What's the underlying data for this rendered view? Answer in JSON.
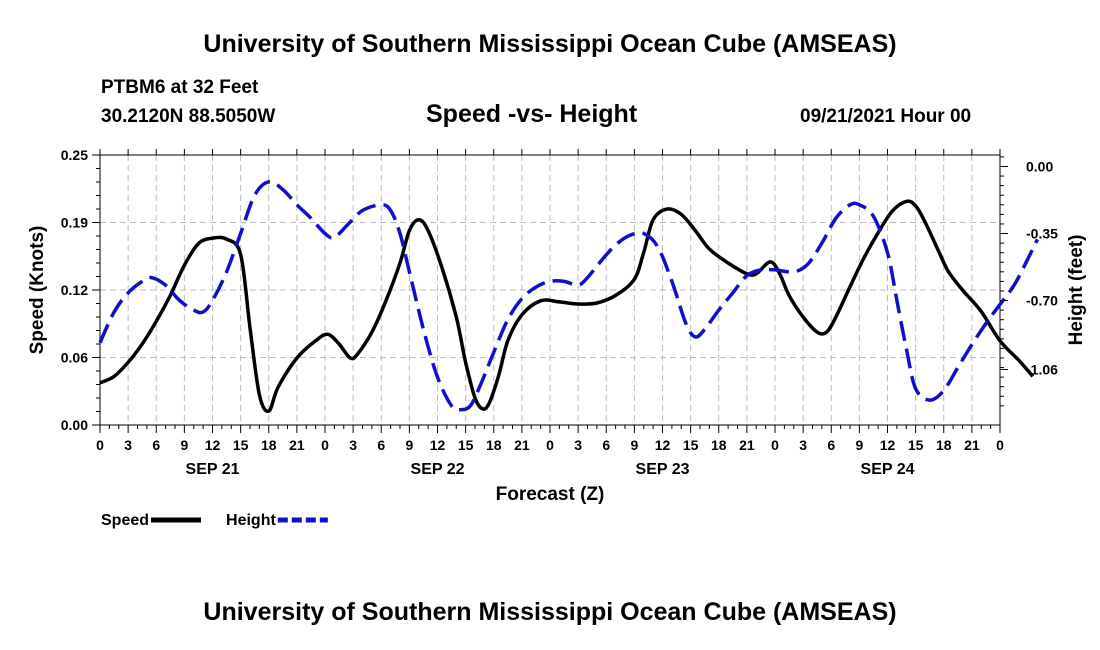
{
  "header": {
    "title": "University of Southern Mississippi Ocean Cube (AMSEAS)",
    "station": "PTBM6 at 32 Feet",
    "coordinates": "30.2120N  88.5050W",
    "chart_title": "Speed -vs- Height",
    "datetime": "09/21/2021 Hour 00"
  },
  "footer": {
    "title": "University of Southern Mississippi Ocean Cube (AMSEAS)"
  },
  "chart_data": {
    "type": "line",
    "title": "Speed -vs- Height",
    "xlabel": "Forecast (Z)",
    "ylabel": "Speed (Knots)",
    "ylabel_right": "Height (feet)",
    "x_range_hours": [
      0,
      96
    ],
    "ylim": [
      0,
      0.25
    ],
    "ylim_right": [
      -1.35,
      0.06
    ],
    "y_ticks": [
      "0.00",
      "0.06",
      "0.12",
      "0.19",
      "0.25"
    ],
    "y_tick_values": [
      0,
      0.0625,
      0.125,
      0.1875,
      0.25
    ],
    "y_right_ticks": [
      "0.00",
      "-0.35",
      "-0.70",
      "-1.06"
    ],
    "y_right_tick_values": [
      0,
      -0.35,
      -0.7,
      -1.06
    ],
    "x_tick_labels": [
      "0",
      "3",
      "6",
      "9",
      "12",
      "15",
      "18",
      "21",
      "0",
      "3",
      "6",
      "9",
      "12",
      "15",
      "18",
      "21",
      "0",
      "3",
      "6",
      "9",
      "12",
      "15",
      "18",
      "21",
      "0",
      "3",
      "6",
      "9",
      "12",
      "15",
      "18",
      "21",
      "0"
    ],
    "date_labels": [
      {
        "label": "SEP 21",
        "hour": 12
      },
      {
        "label": "SEP 22",
        "hour": 36
      },
      {
        "label": "SEP 23",
        "hour": 60
      },
      {
        "label": "SEP 24",
        "hour": 84
      }
    ],
    "legend": [
      "Speed",
      "Height"
    ],
    "series": [
      {
        "name": "Speed",
        "axis": "left",
        "color": "#000000",
        "style": "solid",
        "points": [
          [
            0,
            0.039
          ],
          [
            1.5,
            0.045
          ],
          [
            3,
            0.058
          ],
          [
            4.5,
            0.075
          ],
          [
            6,
            0.096
          ],
          [
            7.5,
            0.12
          ],
          [
            9,
            0.148
          ],
          [
            10.5,
            0.168
          ],
          [
            12,
            0.173
          ],
          [
            13.5,
            0.172
          ],
          [
            15,
            0.158
          ],
          [
            16,
            0.09
          ],
          [
            17,
            0.028
          ],
          [
            18,
            0.013
          ],
          [
            19,
            0.035
          ],
          [
            21,
            0.062
          ],
          [
            23,
            0.078
          ],
          [
            24.3,
            0.084
          ],
          [
            25.5,
            0.075
          ],
          [
            26.7,
            0.062
          ],
          [
            27.5,
            0.066
          ],
          [
            29,
            0.086
          ],
          [
            30.5,
            0.115
          ],
          [
            32,
            0.15
          ],
          [
            33,
            0.18
          ],
          [
            34,
            0.19
          ],
          [
            35,
            0.18
          ],
          [
            36.5,
            0.145
          ],
          [
            38,
            0.1
          ],
          [
            39,
            0.058
          ],
          [
            40,
            0.025
          ],
          [
            40.8,
            0.015
          ],
          [
            41.5,
            0.02
          ],
          [
            42.5,
            0.045
          ],
          [
            43.5,
            0.078
          ],
          [
            45,
            0.102
          ],
          [
            47,
            0.115
          ],
          [
            49,
            0.114
          ],
          [
            51,
            0.112
          ],
          [
            53,
            0.113
          ],
          [
            55,
            0.12
          ],
          [
            57,
            0.135
          ],
          [
            58,
            0.16
          ],
          [
            59,
            0.19
          ],
          [
            60.5,
            0.2
          ],
          [
            62,
            0.195
          ],
          [
            63.5,
            0.18
          ],
          [
            65,
            0.163
          ],
          [
            67,
            0.15
          ],
          [
            69,
            0.14
          ],
          [
            70,
            0.14
          ],
          [
            71.5,
            0.151
          ],
          [
            72.5,
            0.14
          ],
          [
            73.5,
            0.12
          ],
          [
            75,
            0.1
          ],
          [
            76.5,
            0.086
          ],
          [
            77.5,
            0.086
          ],
          [
            78.5,
            0.1
          ],
          [
            80,
            0.128
          ],
          [
            81.5,
            0.155
          ],
          [
            83,
            0.178
          ],
          [
            84.5,
            0.198
          ],
          [
            86,
            0.207
          ],
          [
            87,
            0.203
          ],
          [
            88,
            0.188
          ],
          [
            89.5,
            0.16
          ],
          [
            90.5,
            0.142
          ],
          [
            92,
            0.125
          ],
          [
            94,
            0.105
          ],
          [
            96,
            0.078
          ],
          [
            98,
            0.06
          ],
          [
            99.5,
            0.045
          ]
        ]
      },
      {
        "name": "Height",
        "axis": "right",
        "color": "#1010cc",
        "style": "dashed",
        "points": [
          [
            0,
            -0.92
          ],
          [
            1.5,
            -0.76
          ],
          [
            3,
            -0.66
          ],
          [
            4.5,
            -0.6
          ],
          [
            5.5,
            -0.58
          ],
          [
            7,
            -0.62
          ],
          [
            8.5,
            -0.7
          ],
          [
            10,
            -0.75
          ],
          [
            11,
            -0.76
          ],
          [
            12,
            -0.7
          ],
          [
            13.5,
            -0.55
          ],
          [
            15,
            -0.35
          ],
          [
            16.5,
            -0.15
          ],
          [
            18,
            -0.08
          ],
          [
            19.5,
            -0.12
          ],
          [
            21,
            -0.2
          ],
          [
            22.5,
            -0.27
          ],
          [
            24,
            -0.35
          ],
          [
            25,
            -0.37
          ],
          [
            26.5,
            -0.3
          ],
          [
            28,
            -0.23
          ],
          [
            30,
            -0.2
          ],
          [
            31,
            -0.23
          ],
          [
            32,
            -0.35
          ],
          [
            33,
            -0.55
          ],
          [
            34.5,
            -0.85
          ],
          [
            36,
            -1.1
          ],
          [
            37.5,
            -1.25
          ],
          [
            38.5,
            -1.27
          ],
          [
            39.5,
            -1.25
          ],
          [
            40.5,
            -1.15
          ],
          [
            42,
            -0.97
          ],
          [
            43.5,
            -0.8
          ],
          [
            45,
            -0.69
          ],
          [
            46.5,
            -0.63
          ],
          [
            48,
            -0.6
          ],
          [
            49.5,
            -0.6
          ],
          [
            51,
            -0.62
          ],
          [
            52,
            -0.58
          ],
          [
            53.5,
            -0.49
          ],
          [
            55,
            -0.41
          ],
          [
            56.5,
            -0.36
          ],
          [
            58,
            -0.35
          ],
          [
            59.5,
            -0.42
          ],
          [
            61,
            -0.6
          ],
          [
            62.5,
            -0.82
          ],
          [
            63.5,
            -0.89
          ],
          [
            64.5,
            -0.85
          ],
          [
            66,
            -0.75
          ],
          [
            67.5,
            -0.66
          ],
          [
            69,
            -0.57
          ],
          [
            70.5,
            -0.54
          ],
          [
            72,
            -0.54
          ],
          [
            74,
            -0.55
          ],
          [
            75.5,
            -0.51
          ],
          [
            77,
            -0.4
          ],
          [
            78.5,
            -0.27
          ],
          [
            80,
            -0.2
          ],
          [
            81,
            -0.2
          ],
          [
            82.5,
            -0.26
          ],
          [
            84,
            -0.45
          ],
          [
            85,
            -0.7
          ],
          [
            86,
            -0.95
          ],
          [
            87,
            -1.16
          ],
          [
            88.5,
            -1.22
          ],
          [
            90,
            -1.17
          ],
          [
            91.5,
            -1.05
          ],
          [
            93,
            -0.93
          ],
          [
            94.5,
            -0.82
          ],
          [
            96,
            -0.72
          ],
          [
            97.5,
            -0.62
          ],
          [
            99,
            -0.48
          ],
          [
            100,
            -0.38
          ]
        ]
      }
    ]
  }
}
